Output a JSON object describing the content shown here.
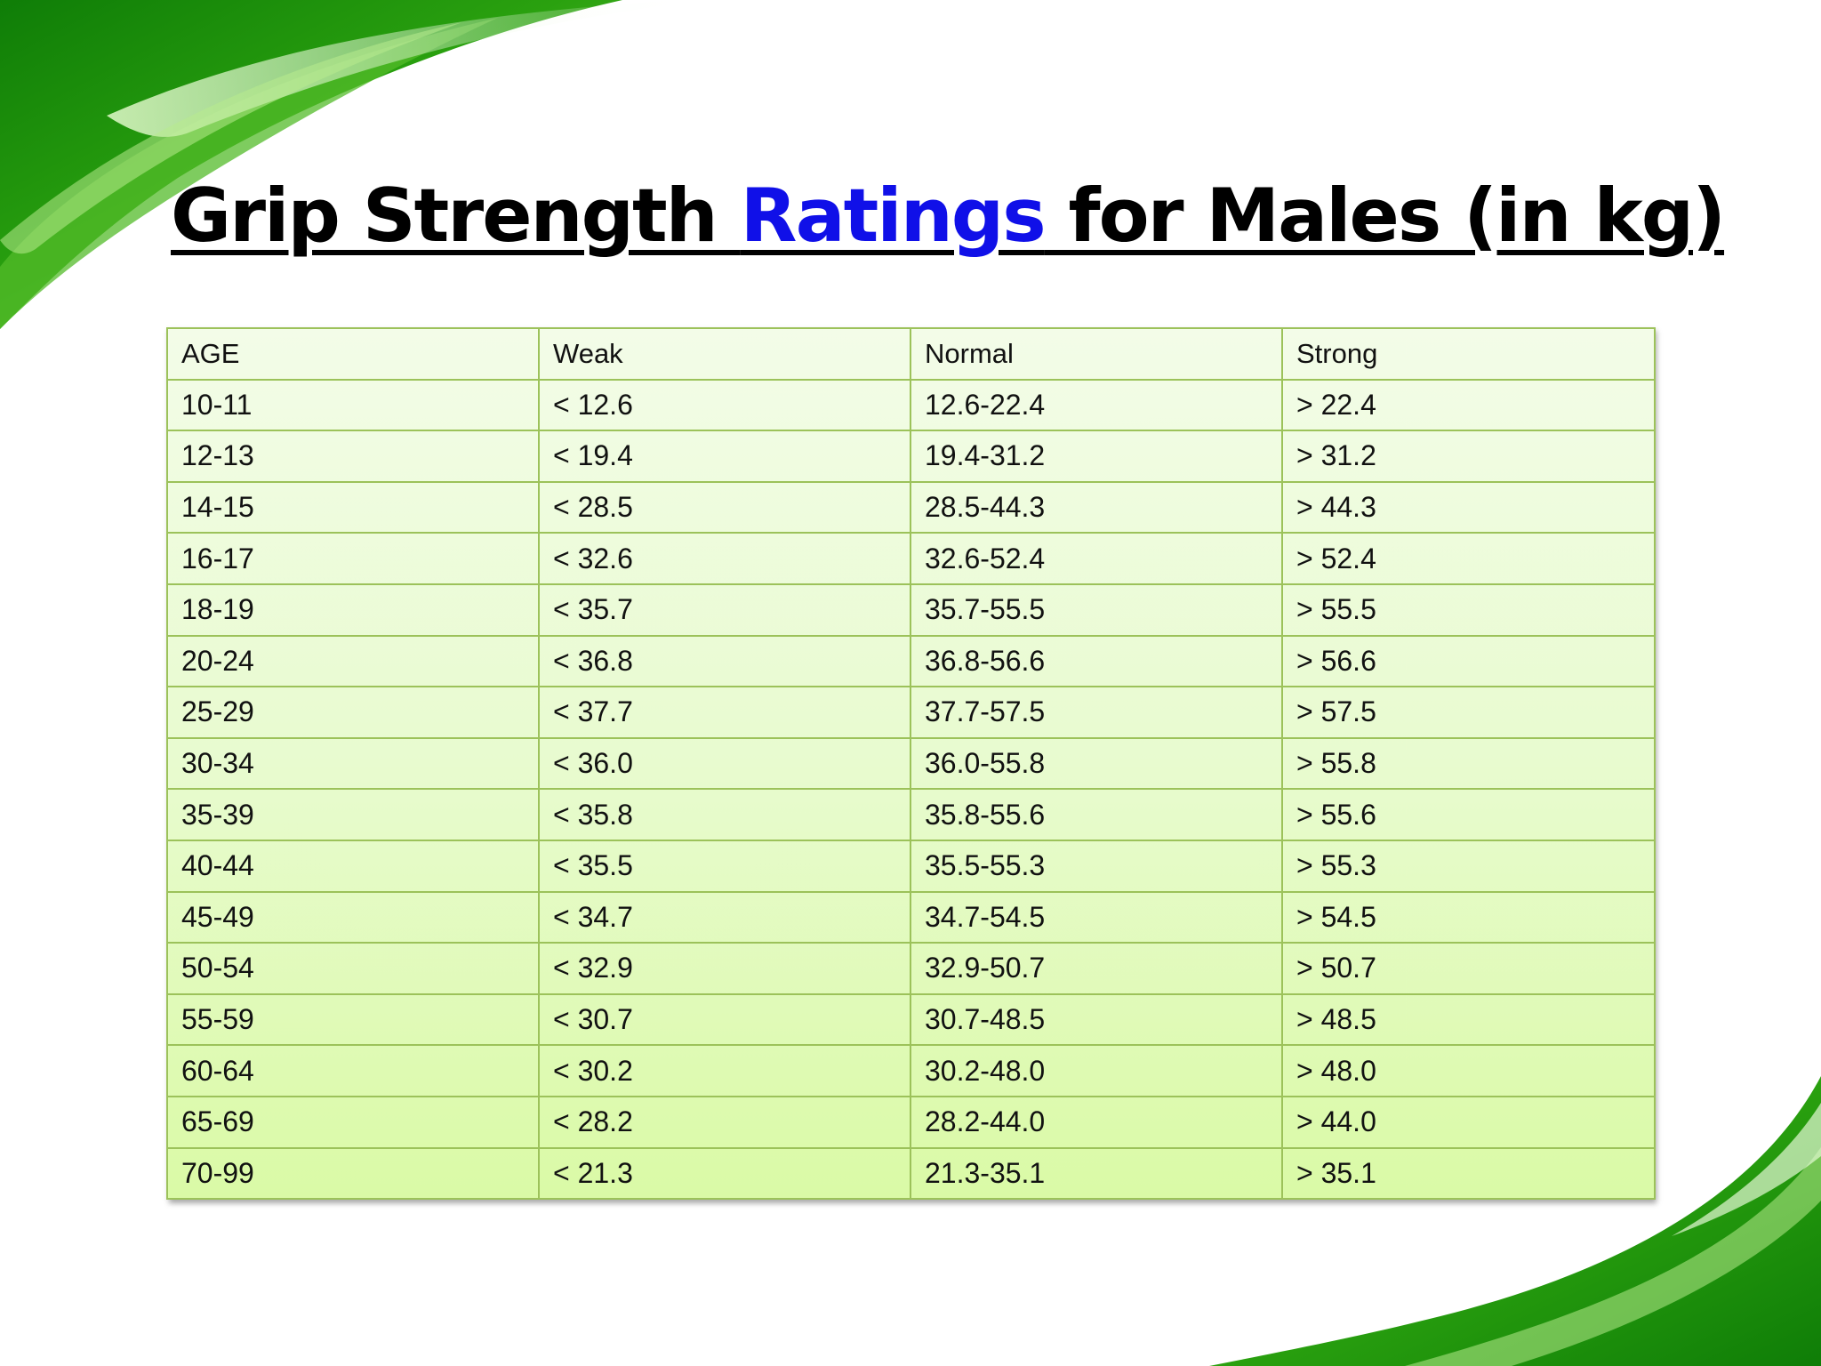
{
  "title": {
    "part1": "Grip Strength ",
    "link": "Ratings",
    "part2": " for Males (in kg)"
  },
  "colors": {
    "accent_green": "#2aa10f",
    "link_blue": "#1010e8",
    "table_border": "#9cc25a",
    "table_fill_top": "#f3fce8",
    "table_fill_bottom": "#dafaa6"
  },
  "table": {
    "headers": [
      "AGE",
      "Weak",
      "Normal",
      "Strong"
    ],
    "rows": [
      [
        "10-11",
        "< 12.6",
        "12.6-22.4",
        "> 22.4"
      ],
      [
        "12-13",
        "< 19.4",
        "19.4-31.2",
        "> 31.2"
      ],
      [
        "14-15",
        "< 28.5",
        "28.5-44.3",
        "> 44.3"
      ],
      [
        "16-17",
        "< 32.6",
        "32.6-52.4",
        "> 52.4"
      ],
      [
        "18-19",
        "< 35.7",
        "35.7-55.5",
        "> 55.5"
      ],
      [
        "20-24",
        "< 36.8",
        "36.8-56.6",
        "> 56.6"
      ],
      [
        "25-29",
        "< 37.7",
        "37.7-57.5",
        "> 57.5"
      ],
      [
        "30-34",
        "< 36.0",
        "36.0-55.8",
        "> 55.8"
      ],
      [
        "35-39",
        "< 35.8",
        "35.8-55.6",
        "> 55.6"
      ],
      [
        "40-44",
        "< 35.5",
        "35.5-55.3",
        "> 55.3"
      ],
      [
        "45-49",
        "< 34.7",
        "34.7-54.5",
        "> 54.5"
      ],
      [
        "50-54",
        "< 32.9",
        "32.9-50.7",
        "> 50.7"
      ],
      [
        "55-59",
        "< 30.7",
        "30.7-48.5",
        "> 48.5"
      ],
      [
        "60-64",
        "< 30.2",
        "30.2-48.0",
        "> 48.0"
      ],
      [
        "65-69",
        "< 28.2",
        "28.2-44.0",
        "> 44.0"
      ],
      [
        "70-99",
        "< 21.3",
        "21.3-35.1",
        "> 35.1"
      ]
    ]
  }
}
